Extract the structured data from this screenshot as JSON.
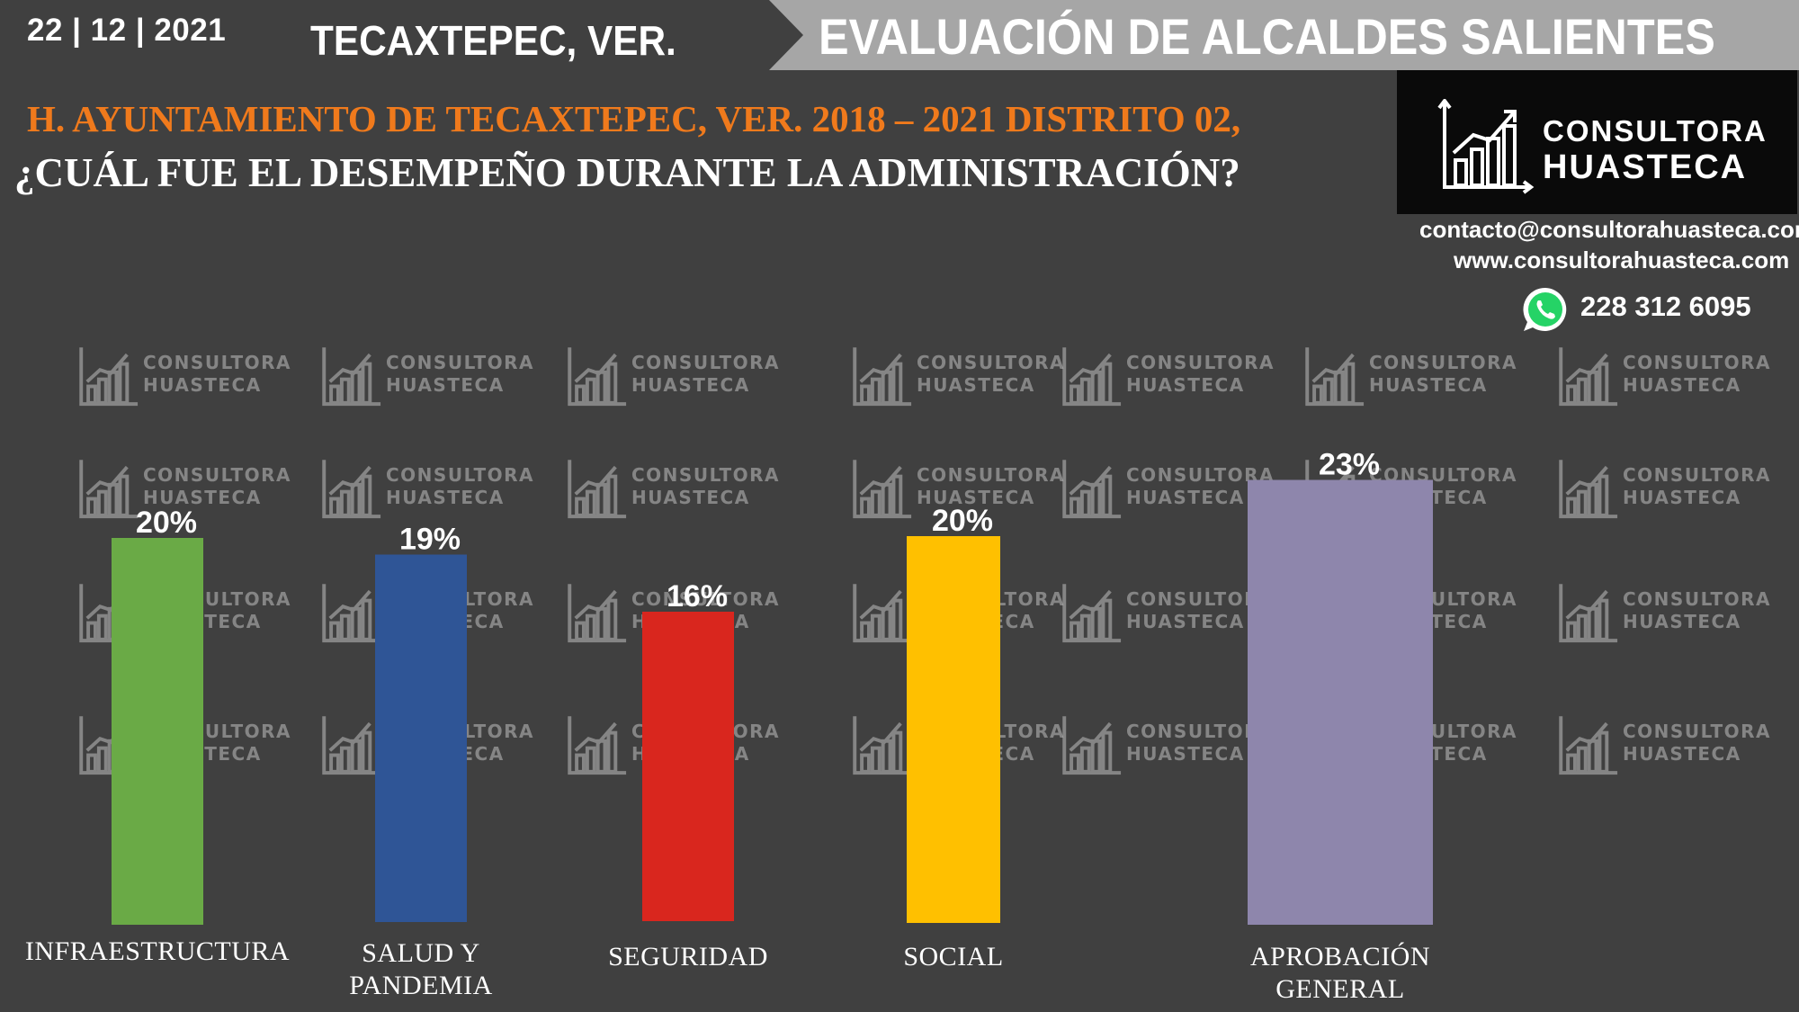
{
  "header": {
    "date": "22 | 12 | 2021",
    "place": "TECAXTEPEC, VER.",
    "banner": "EVALUACIÓN DE ALCALDES SALIENTES"
  },
  "subtitle": {
    "line1": "H. AYUNTAMIENTO DE TECAXTEPEC, VER. 2018 – 2021 DISTRITO 02,",
    "line2": "¿CUÁL FUE EL DESEMPEÑO DURANTE LA ADMINISTRACIÓN?"
  },
  "brand": {
    "logo_line1": "CONSULTORA",
    "logo_line2": "HUASTECA",
    "email": "contacto@consultorahuasteca.com",
    "website": "www.consultorahuasteca.com",
    "phone": "228 312 6095",
    "watermark_line1": "CONSULTORA",
    "watermark_line2": "HUASTECA"
  },
  "colors": {
    "background": "#404040",
    "subtitle_orange": "#f07a1c",
    "banner_gray": "#a6a6a6"
  },
  "chart_data": {
    "type": "bar",
    "categories": [
      "INFRAESTRUCTURA",
      "SALUD Y PANDEMIA",
      "SEGURIDAD",
      "SOCIAL",
      "APROBACIÓN GENERAL"
    ],
    "category_lines": [
      [
        "INFRAESTRUCTURA"
      ],
      [
        "SALUD Y",
        "PANDEMIA"
      ],
      [
        "SEGURIDAD"
      ],
      [
        "SOCIAL"
      ],
      [
        "APROBACIÓN",
        "GENERAL"
      ]
    ],
    "values": [
      20,
      19,
      16,
      20,
      23
    ],
    "value_labels": [
      "20%",
      "19%",
      "16%",
      "20%",
      "23%"
    ],
    "colors": [
      "#6aaa46",
      "#2f5596",
      "#d9261e",
      "#ffc000",
      "#8e86ac"
    ],
    "unit": "%"
  }
}
